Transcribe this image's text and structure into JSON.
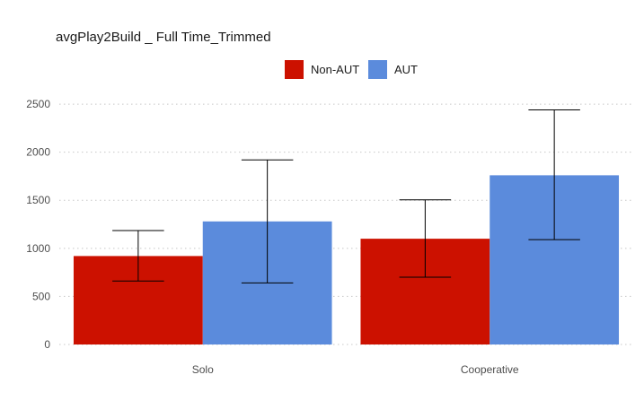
{
  "chart_data": {
    "type": "bar",
    "title": "avgPlay2Build _ Full Time_Trimmed",
    "xlabel": "",
    "ylabel": "",
    "categories": [
      "Solo",
      "Cooperative"
    ],
    "series": [
      {
        "name": "Non-AUT",
        "color": "#cc1100",
        "values": [
          920,
          1100
        ],
        "error_low": [
          660,
          700
        ],
        "error_high": [
          1185,
          1505
        ]
      },
      {
        "name": "AUT",
        "color": "#5b8bdc",
        "values": [
          1280,
          1760
        ],
        "error_low": [
          640,
          1090
        ],
        "error_high": [
          1920,
          2440
        ]
      }
    ],
    "ylim": [
      0,
      2650
    ],
    "yticks": [
      0,
      500,
      1000,
      1500,
      2000,
      2500
    ],
    "grid": true,
    "legend_position": "top-center"
  }
}
